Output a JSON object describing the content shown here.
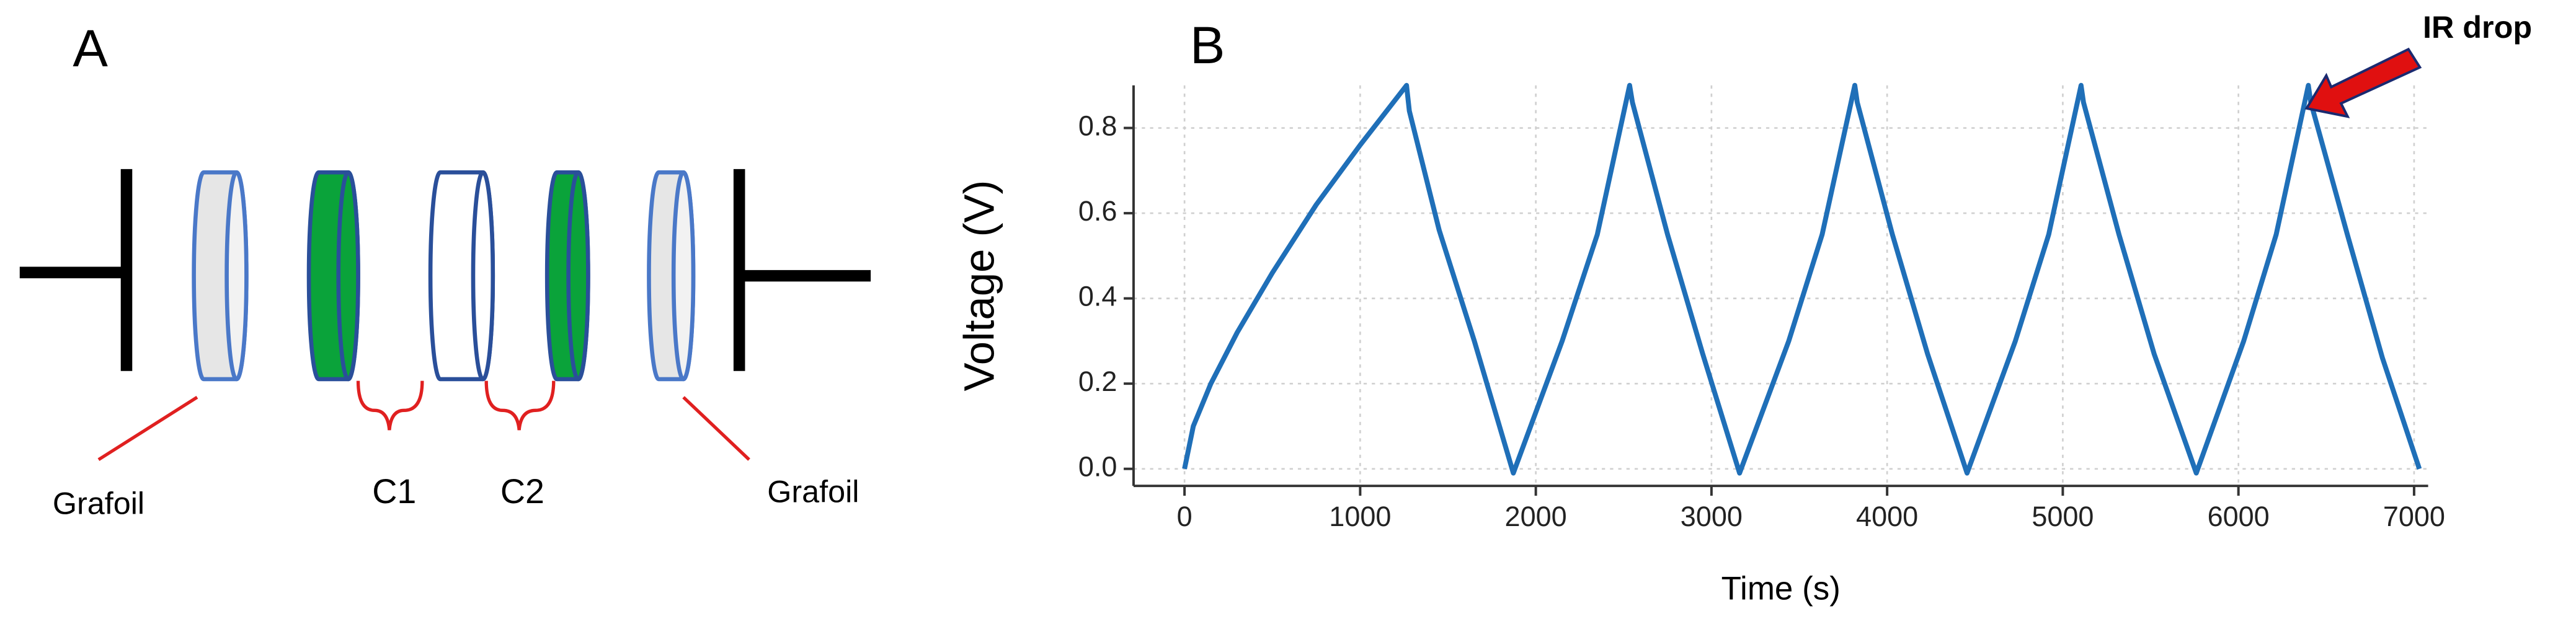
{
  "panels": {
    "A": "A",
    "B": "B"
  },
  "diagram": {
    "labels": [
      "Grafoil",
      "C1",
      "C2",
      "Grafoil"
    ]
  },
  "chart_data": {
    "type": "line",
    "xlabel": "Time (s)",
    "ylabel": "Voltage (V)",
    "annotation": "IR drop",
    "x": [
      0,
      50,
      150,
      300,
      500,
      750,
      1000,
      1264,
      1280,
      1450,
      1650,
      1872,
      2150,
      2350,
      2534,
      2550,
      2750,
      2950,
      3160,
      3440,
      3630,
      3816,
      3830,
      4030,
      4230,
      4455,
      4730,
      4920,
      5104,
      5118,
      5320,
      5520,
      5760,
      6030,
      6215,
      6398,
      6412,
      6620,
      6820,
      7030
    ],
    "series": [
      {
        "name": "Voltage",
        "color": "#1f6fb8",
        "values": [
          0,
          0.1,
          0.2,
          0.32,
          0.46,
          0.62,
          0.76,
          0.9,
          0.84,
          0.56,
          0.3,
          -0.01,
          0.3,
          0.55,
          0.9,
          0.86,
          0.55,
          0.27,
          -0.01,
          0.3,
          0.55,
          0.9,
          0.86,
          0.55,
          0.27,
          -0.01,
          0.3,
          0.55,
          0.9,
          0.86,
          0.55,
          0.27,
          -0.01,
          0.3,
          0.55,
          0.9,
          0.86,
          0.55,
          0.26,
          0
        ]
      }
    ],
    "xlim": [
      -290,
      7080
    ],
    "ylim": [
      -0.04,
      0.9
    ],
    "xticks": [
      0,
      1000,
      2000,
      3000,
      4000,
      5000,
      6000,
      7000
    ],
    "yticks": [
      {
        "value": 0,
        "label": "0.0"
      },
      0.2,
      0.4,
      0.6,
      0.8
    ],
    "grid": true
  }
}
